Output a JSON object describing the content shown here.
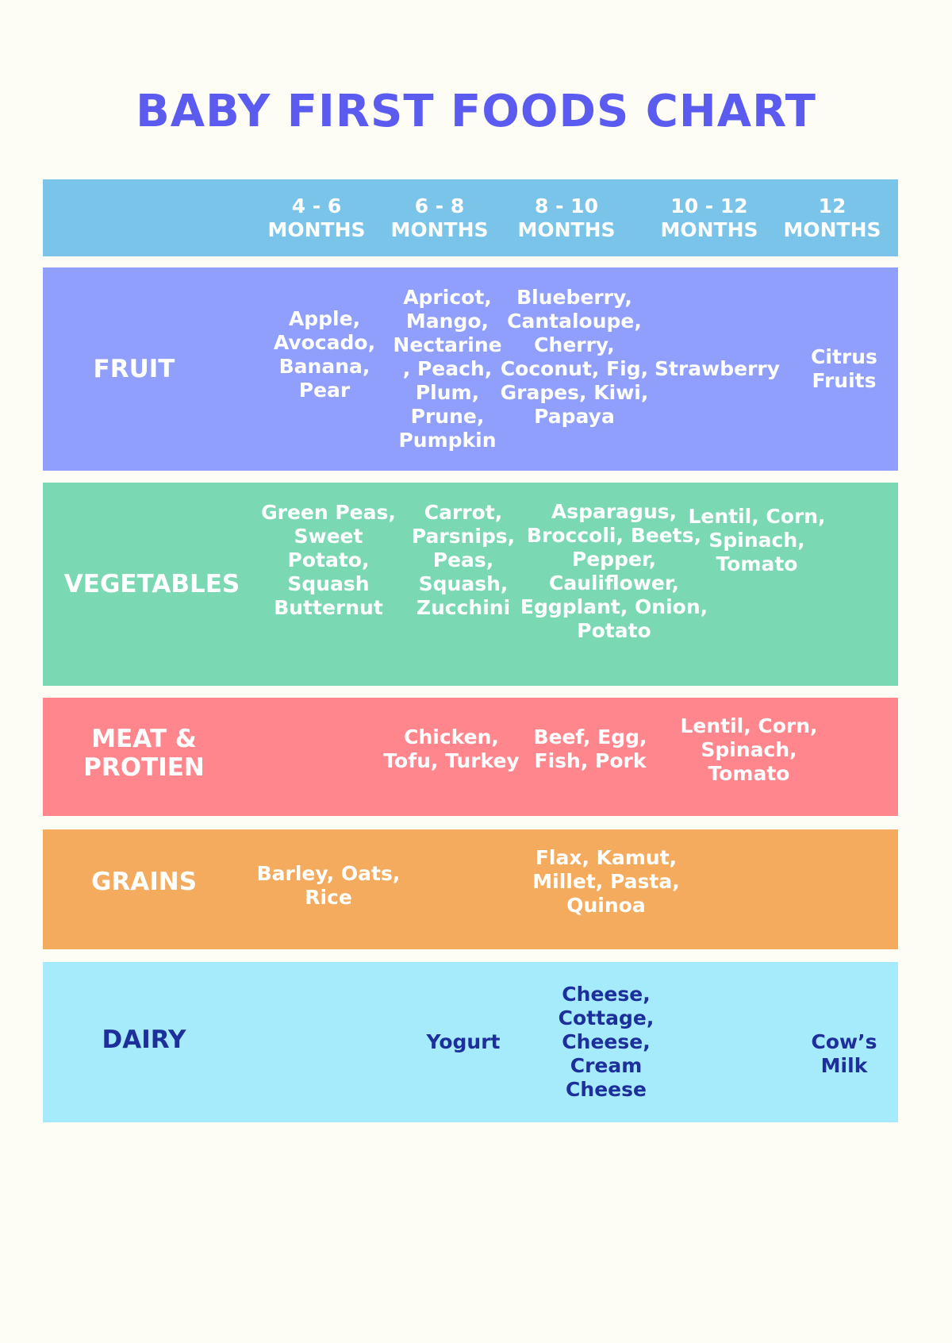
{
  "title": "BABY FIRST FOODS CHART",
  "colors": {
    "title": "#5b5bf0",
    "header": "#79c4e8",
    "fruit": "#909ffc",
    "vegetables": "#7ad8b3",
    "meat": "#ff868d",
    "grains": "#f5ab5d",
    "dairy": "#a6ebfc",
    "dairy_text": "#1d2f9a"
  },
  "header": [
    "4 - 6\nMONTHS",
    "6 - 8\nMONTHS",
    "8 - 10\nMONTHS",
    "10 - 12\nMONTHS",
    "12\nMONTHS"
  ],
  "rows": [
    {
      "label": "FRUIT",
      "cells": [
        "Apple,\nAvocado,\nBanana,\nPear",
        "Apricot,\nMango,\nNectarine\n, Peach,\nPlum,\nPrune,\nPumpkin",
        "Blueberry,\nCantaloupe,\nCherry,\nCoconut, Fig,\nGrapes, Kiwi,\nPapaya",
        "Strawberry",
        "Citrus\nFruits"
      ]
    },
    {
      "label": "VEGETABLES",
      "cells": [
        "Green Peas,\nSweet\nPotato,\nSquash\nButternut",
        "Carrot,\nParsnips,\nPeas,\nSquash,\nZucchini",
        "Asparagus,\nBroccoli, Beets,\nPepper,\nCauliflower,\nEggplant, Onion,\nPotato",
        "Lentil, Corn,\nSpinach,\nTomato",
        ""
      ]
    },
    {
      "label": "MEAT &\nPROTIEN",
      "cells": [
        "",
        "Chicken,\nTofu, Turkey",
        "Beef, Egg,\nFish, Pork",
        "Lentil, Corn,\nSpinach,\nTomato",
        ""
      ]
    },
    {
      "label": "GRAINS",
      "cells": [
        "Barley, Oats,\nRice",
        "",
        "Flax, Kamut,\nMillet, Pasta,\nQuinoa",
        "",
        ""
      ]
    },
    {
      "label": "DAIRY",
      "cells": [
        "",
        "Yogurt",
        "Cheese,\nCottage,\nCheese,\nCream\nCheese",
        "",
        "Cow’s\nMilk"
      ]
    }
  ]
}
